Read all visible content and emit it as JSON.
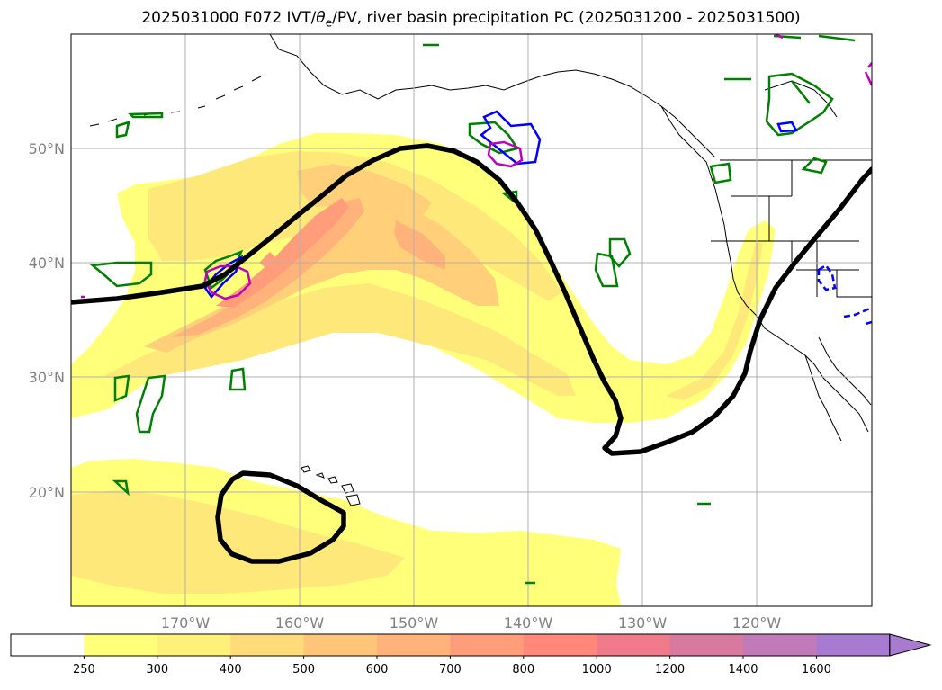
{
  "title": {
    "prefix": "2025031000 F072 IVT/",
    "theta": "θ",
    "theta_sub": "e",
    "suffix": "/PV, river basin precipitation PC (2025031200 - 2025031500)"
  },
  "map": {
    "lat_labels": [
      "50°N",
      "40°N",
      "30°N",
      "20°N"
    ],
    "lon_labels": [
      "170°W",
      "160°W",
      "150°W",
      "140°W",
      "130°W",
      "120°W"
    ],
    "lat_values": [
      50,
      40,
      30,
      20
    ],
    "lon_values": [
      -170,
      -160,
      -150,
      -140,
      -130,
      -120
    ],
    "extent": {
      "lon_min": -180,
      "lon_max": -110,
      "lat_min": 10,
      "lat_max": 60
    }
  },
  "colorbar": {
    "labels": [
      "250",
      "300",
      "400",
      "500",
      "600",
      "700",
      "800",
      "1000",
      "1200",
      "1400",
      "1600"
    ],
    "colors": [
      "#ffffff",
      "#ffff7a",
      "#fff07a",
      "#ffdb7a",
      "#ffc67a",
      "#ffb27a",
      "#ff9d7a",
      "#ff887a",
      "#ee7a8a",
      "#d87aa0",
      "#c07ab8",
      "#a87ad0"
    ],
    "extend": "max"
  },
  "colors": {
    "ivt_fill_1": "#ffff7a",
    "ivt_fill_2": "#ffe87a",
    "ivt_fill_3": "#ffcf7a",
    "ivt_fill_4": "#ffb27a",
    "ivt_fill_5": "#ff9d7a",
    "pv_contour": "#000000",
    "green_contour": "#008000",
    "blue_contour": "#0000ff",
    "magenta_contour": "#c000c0"
  }
}
